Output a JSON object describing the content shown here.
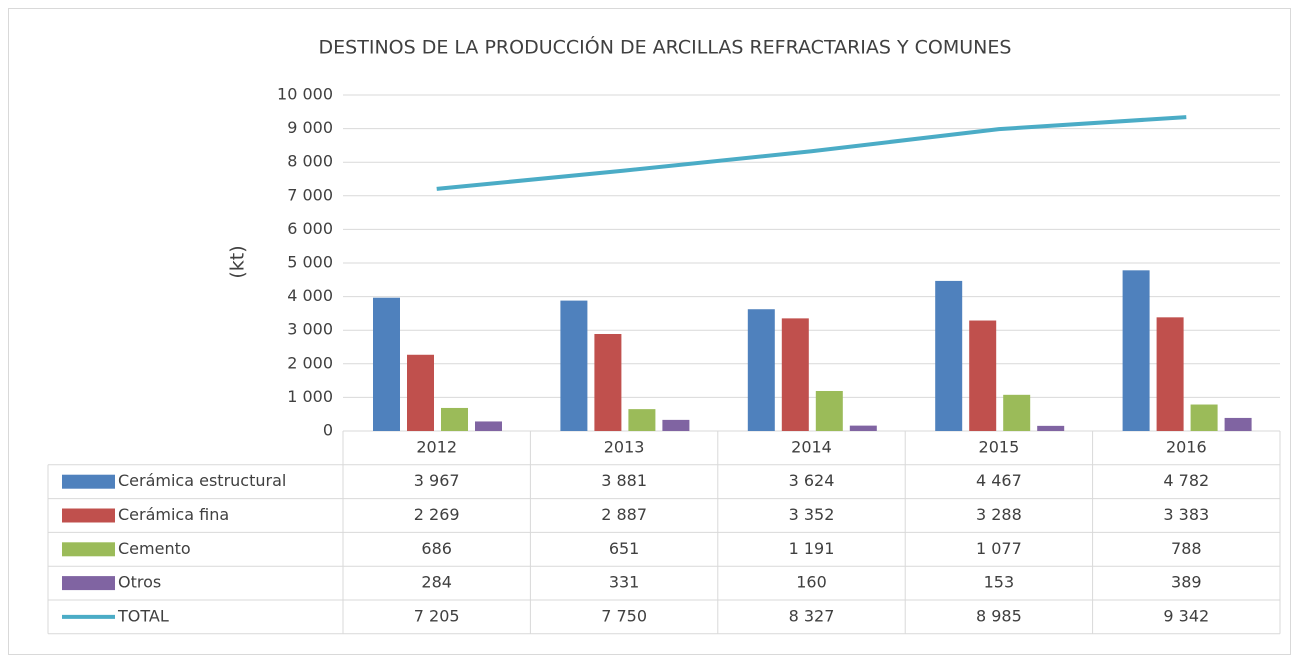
{
  "chart_data": {
    "type": "bar",
    "title": "DESTINOS DE LA PRODUCCIÓN DE ARCILLAS REFRACTARIAS Y COMUNES",
    "y_label": "(kt)",
    "categories": [
      "2012",
      "2013",
      "2014",
      "2015",
      "2016"
    ],
    "series": [
      {
        "name": "Cerámica estructural",
        "color": "#4f81bd",
        "type": "bar",
        "values": [
          3967,
          3881,
          3624,
          4467,
          4782
        ],
        "value_labels": [
          "3 967",
          "3 881",
          "3 624",
          "4 467",
          "4 782"
        ]
      },
      {
        "name": "Cerámica fina",
        "color": "#c0504d",
        "type": "bar",
        "values": [
          2269,
          2887,
          3352,
          3288,
          3383
        ],
        "value_labels": [
          "2 269",
          "2 887",
          "3 352",
          "3 288",
          "3 383"
        ]
      },
      {
        "name": "Cemento",
        "color": "#9bbb59",
        "type": "bar",
        "values": [
          686,
          651,
          1191,
          1077,
          788
        ],
        "value_labels": [
          "686",
          "651",
          "1 191",
          "1 077",
          "788"
        ]
      },
      {
        "name": "Otros",
        "color": "#8064a2",
        "type": "bar",
        "values": [
          284,
          331,
          160,
          153,
          389
        ]
      },
      {
        "name": "TOTAL",
        "color": "#4bacc6",
        "type": "line",
        "values": [
          7205,
          7750,
          8327,
          8985,
          9342
        ],
        "value_labels": [
          "7 205",
          "7 750",
          "8 327",
          "8 985",
          "9 342"
        ]
      }
    ],
    "ylim": [
      0,
      10000
    ],
    "yticks": [
      0,
      {
        "value": 1000,
        "label": "1 000"
      },
      {
        "value": 2000,
        "label": "2 000"
      },
      {
        "value": 3000,
        "label": "3 000"
      },
      {
        "value": 4000,
        "label": "4 000"
      },
      {
        "value": 5000,
        "label": "5 000"
      },
      {
        "value": 6000,
        "label": "6 000"
      },
      {
        "value": 7000,
        "label": "7 000"
      },
      {
        "value": 8000,
        "label": "8 000"
      },
      {
        "value": 9000,
        "label": "9 000"
      },
      {
        "value": 10000,
        "label": "10 000"
      }
    ],
    "grid": true
  }
}
